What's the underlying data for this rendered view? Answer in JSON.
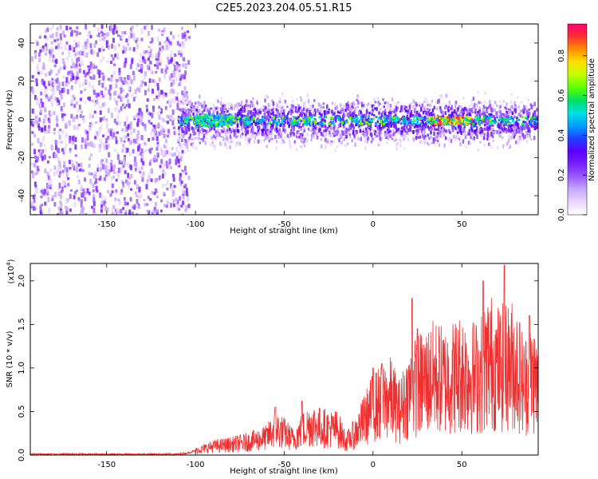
{
  "title": "C2E5.2023.204.05.51.R15",
  "colors": {
    "snr_line": "#f03030",
    "axis": "#000000",
    "colormap": [
      "#ffffff",
      "#e8d8ff",
      "#c8a8ff",
      "#9a5aff",
      "#7a20ff",
      "#5a00ff",
      "#2040ff",
      "#00a0ff",
      "#00e0e0",
      "#00e060",
      "#60ff00",
      "#c0ff00",
      "#ffe000",
      "#ff9000",
      "#ff3030",
      "#ff0070"
    ]
  },
  "chart_data": [
    {
      "type": "heatmap",
      "xlabel": "Height of straight line (km)",
      "ylabel": "Frequency (Hz)",
      "xlim": [
        -193,
        93
      ],
      "ylim": [
        -50,
        50
      ],
      "xticks": [
        -150,
        -100,
        -50,
        0,
        50
      ],
      "yticks": [
        -40,
        -20,
        0,
        20,
        40
      ],
      "grid": false,
      "colorbar": {
        "label": "Normalized spectral amplitude",
        "range": [
          0,
          0.96
        ],
        "ticks": [
          "0.0",
          "0.2",
          "0.4",
          "0.6",
          "0.8"
        ],
        "tick_values": [
          0.0,
          0.2,
          0.4,
          0.6,
          0.8
        ]
      },
      "description_regions": [
        {
          "x": [
            -193,
            -110
          ],
          "y": [
            -50,
            50
          ],
          "level": 0.15
        },
        {
          "x": [
            -110,
            93
          ],
          "y": [
            -10,
            10
          ],
          "level": 0.3
        },
        {
          "x": [
            -100,
            -80
          ],
          "y": [
            -3,
            3
          ],
          "level": 0.55
        },
        {
          "x": [
            30,
            55
          ],
          "y": [
            -2,
            2
          ],
          "level": 0.85
        }
      ]
    },
    {
      "type": "line",
      "xlabel": "Height of straight line (km)",
      "ylabel": "SNR (10 * v/v)",
      "scale_label": "(x10",
      "scale_exponent": "4",
      "scale_suffix": ")",
      "xlim": [
        -193,
        93
      ],
      "ylim": [
        0,
        2.2
      ],
      "xticks": [
        -150,
        -100,
        -50,
        0,
        50
      ],
      "yticks": [
        "0.0",
        "0.5",
        "1.0",
        "1.5",
        "2.0"
      ],
      "ytick_values": [
        0.0,
        0.5,
        1.0,
        1.5,
        2.0
      ],
      "grid": false,
      "series": [
        {
          "x": [
            -193,
            -180,
            -160,
            -140,
            -120,
            -110,
            -105,
            -100,
            -90,
            -80,
            -70,
            -60,
            -55,
            -50,
            -45,
            -40,
            -35,
            -30,
            -25,
            -20,
            -15,
            -10,
            -5,
            0,
            5,
            10,
            15,
            20,
            25,
            30,
            35,
            40,
            45,
            50,
            55,
            60,
            65,
            70,
            75,
            80,
            85,
            90,
            93
          ],
          "y": [
            0.01,
            0.01,
            0.01,
            0.01,
            0.01,
            0.01,
            0.02,
            0.05,
            0.1,
            0.12,
            0.15,
            0.2,
            0.3,
            0.25,
            0.18,
            0.28,
            0.35,
            0.32,
            0.3,
            0.3,
            0.15,
            0.25,
            0.4,
            0.55,
            0.6,
            0.65,
            0.5,
            0.7,
            0.8,
            0.85,
            0.9,
            0.85,
            0.9,
            0.95,
            0.9,
            0.9,
            1.1,
            1.0,
            1.0,
            1.05,
            0.8,
            0.9,
            0.75
          ],
          "peaks": [
            {
              "x": -55,
              "y": 0.55
            },
            {
              "x": -40,
              "y": 0.62
            },
            {
              "x": 0,
              "y": 1.0
            },
            {
              "x": 5,
              "y": 1.05
            },
            {
              "x": 22,
              "y": 1.8
            },
            {
              "x": 25,
              "y": 1.45
            },
            {
              "x": 62,
              "y": 2.0
            },
            {
              "x": 74,
              "y": 2.18
            },
            {
              "x": 88,
              "y": 1.6
            }
          ]
        }
      ]
    }
  ]
}
